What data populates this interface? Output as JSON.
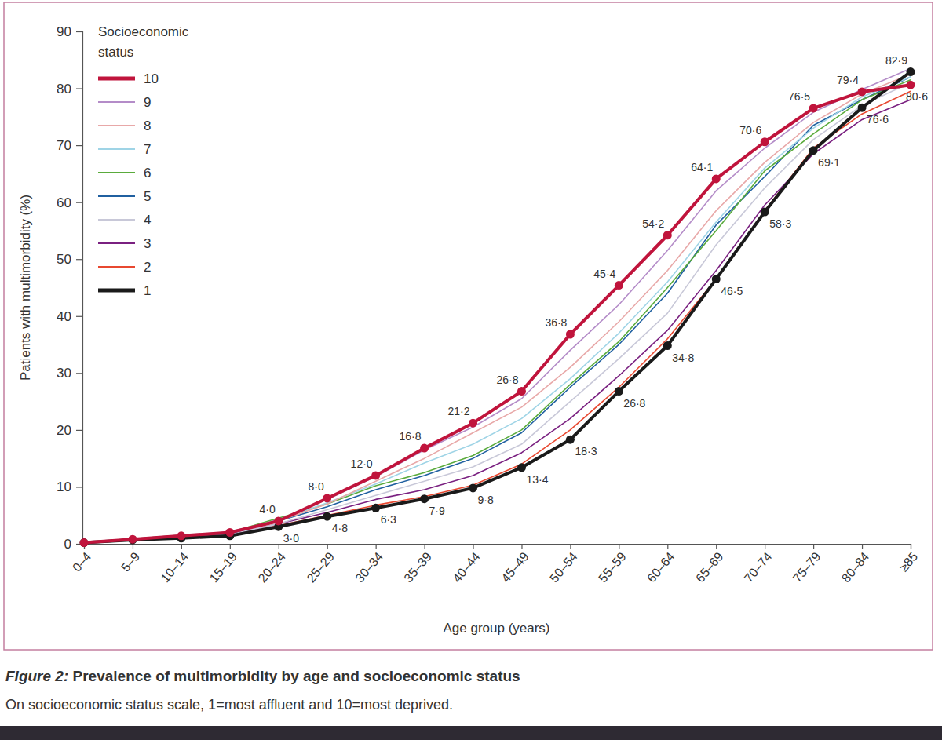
{
  "chart_data": {
    "type": "line",
    "title": "Figure 2: Prevalence of multimorbidity by age and socioeconomic status",
    "subtitle": "On socioeconomic status scale, 1=most affluent and 10=most deprived.",
    "x_label": "Age group (years)",
    "y_label": "Patients with multimorbidity (%)",
    "legend_title": "Socioeconomic status",
    "legend": "upper left",
    "grid": false,
    "categories": [
      "0–4",
      "5–9",
      "10–14",
      "15–19",
      "20–24",
      "25–29",
      "30–34",
      "35–39",
      "40–44",
      "45–49",
      "50–54",
      "55–59",
      "60–64",
      "65–69",
      "70–74",
      "75–79",
      "80–84",
      "≥85"
    ],
    "ylim": [
      0,
      90
    ],
    "yticks": [
      0,
      10,
      20,
      30,
      40,
      50,
      60,
      70,
      80,
      90
    ],
    "series": [
      {
        "name": "10",
        "color": "#c0143c",
        "marker": "circle",
        "data_labels": true,
        "values": [
          0.2,
          0.8,
          1.4,
          2.0,
          4.0,
          8.0,
          12.0,
          16.8,
          21.2,
          26.8,
          36.8,
          45.4,
          54.2,
          64.1,
          70.6,
          76.5,
          79.4,
          80.6
        ],
        "value_labels": [
          null,
          null,
          null,
          null,
          "4·0",
          "8·0",
          "12·0",
          "16·8",
          "21·2",
          "26·8",
          "36·8",
          "45·4",
          "54·2",
          "64·1",
          "70·6",
          "76·5",
          "79·4",
          "80·6"
        ]
      },
      {
        "name": "9",
        "color": "#b48cc8",
        "values": [
          0.2,
          0.9,
          1.5,
          2.1,
          4.2,
          7.8,
          11.8,
          16.5,
          20.5,
          25.5,
          34.0,
          42.0,
          51.5,
          62.0,
          69.5,
          75.8,
          79.8,
          83.5
        ]
      },
      {
        "name": "8",
        "color": "#e8a8a8",
        "values": [
          0.2,
          0.9,
          1.5,
          2.0,
          4.0,
          7.0,
          11.0,
          15.0,
          19.5,
          24.0,
          31.0,
          39.0,
          48.0,
          58.5,
          67.0,
          74.0,
          79.0,
          82.5
        ]
      },
      {
        "name": "7",
        "color": "#9fd4e6",
        "values": [
          0.2,
          0.9,
          1.4,
          2.0,
          4.2,
          7.2,
          10.5,
          14.2,
          17.5,
          22.0,
          29.0,
          37.0,
          46.0,
          56.5,
          66.0,
          73.0,
          78.5,
          82.0
        ]
      },
      {
        "name": "6",
        "color": "#5aab3c",
        "values": [
          0.2,
          0.9,
          1.5,
          2.0,
          4.5,
          7.0,
          10.2,
          12.5,
          15.5,
          20.0,
          28.0,
          35.5,
          45.0,
          55.0,
          65.5,
          72.0,
          78.0,
          81.5
        ]
      },
      {
        "name": "5",
        "color": "#2060a0",
        "values": [
          0.2,
          0.8,
          1.3,
          1.8,
          4.0,
          6.5,
          9.5,
          12.0,
          15.0,
          19.5,
          27.5,
          35.0,
          44.0,
          56.0,
          64.5,
          73.5,
          78.0,
          82.0
        ]
      },
      {
        "name": "4",
        "color": "#c8c8d8",
        "values": [
          0.2,
          0.8,
          1.2,
          1.7,
          3.5,
          6.0,
          8.5,
          11.0,
          13.5,
          17.5,
          25.0,
          32.5,
          40.5,
          52.5,
          62.5,
          71.0,
          77.0,
          81.0
        ]
      },
      {
        "name": "3",
        "color": "#7a2080",
        "values": [
          0.2,
          0.7,
          1.1,
          1.6,
          3.5,
          5.5,
          7.8,
          9.5,
          12.0,
          16.0,
          22.0,
          29.5,
          37.5,
          48.0,
          59.5,
          68.5,
          74.5,
          78.0
        ]
      },
      {
        "name": "2",
        "color": "#e84830",
        "values": [
          0.2,
          0.7,
          1.0,
          1.5,
          3.2,
          5.0,
          6.8,
          8.3,
          10.3,
          14.0,
          20.0,
          27.5,
          36.0,
          46.5,
          58.5,
          69.5,
          75.5,
          79.5
        ]
      },
      {
        "name": "1",
        "color": "#1a1a1a",
        "marker": "circle",
        "data_labels": true,
        "values": [
          0.2,
          0.7,
          1.0,
          1.4,
          3.0,
          4.8,
          6.3,
          7.9,
          9.8,
          13.4,
          18.3,
          26.8,
          34.8,
          46.5,
          58.3,
          69.1,
          76.6,
          82.9
        ],
        "value_labels": [
          null,
          null,
          null,
          null,
          "3·0",
          "4·8",
          "6·3",
          "7·9",
          "9·8",
          "13·4",
          "18·3",
          "26·8",
          "34·8",
          "46·5",
          "58·3",
          "69·1",
          "76·6",
          "82·9"
        ]
      }
    ]
  }
}
